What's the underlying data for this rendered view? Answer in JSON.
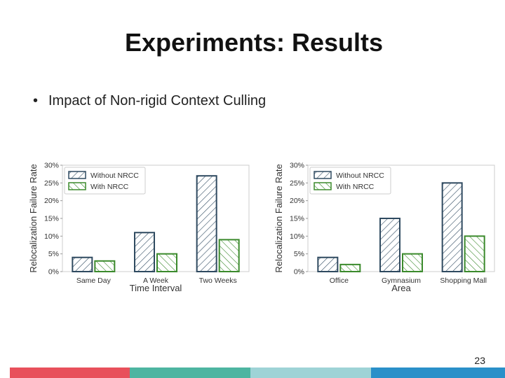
{
  "slide": {
    "title": "Experiments: Results",
    "bullet_marker": "•",
    "bullet_text": "Impact of Non-rigid Context Culling",
    "page_number": "23"
  },
  "colors": {
    "without_nrcc": "#2f4a60",
    "with_nrcc": "#3b8a2c",
    "footer": [
      "#e8505b",
      "#4db5a1",
      "#9ed3d6",
      "#2a90c9"
    ]
  },
  "chart_data": [
    {
      "type": "bar",
      "categories": [
        "Same Day",
        "A Week",
        "Two Weeks"
      ],
      "series": [
        {
          "name": "Without NRCC",
          "values": [
            4,
            11,
            27
          ]
        },
        {
          "name": "With NRCC",
          "values": [
            3,
            5,
            9
          ]
        }
      ],
      "xlabel": "Time Interval",
      "ylabel": "Relocalization Failure Rate",
      "ylim": [
        0,
        30
      ],
      "yticks": [
        "0%",
        "5%",
        "10%",
        "15%",
        "20%",
        "25%",
        "30%"
      ],
      "legend": "top-left"
    },
    {
      "type": "bar",
      "categories": [
        "Office",
        "Gymnasium",
        "Shopping Mall"
      ],
      "series": [
        {
          "name": "Without NRCC",
          "values": [
            4,
            15,
            25
          ]
        },
        {
          "name": "With NRCC",
          "values": [
            2,
            5,
            10
          ]
        }
      ],
      "xlabel": "Area",
      "ylabel": "Relocalization Failure Rate",
      "ylim": [
        0,
        30
      ],
      "yticks": [
        "0%",
        "5%",
        "10%",
        "15%",
        "20%",
        "25%",
        "30%"
      ],
      "legend": "top-left"
    }
  ]
}
